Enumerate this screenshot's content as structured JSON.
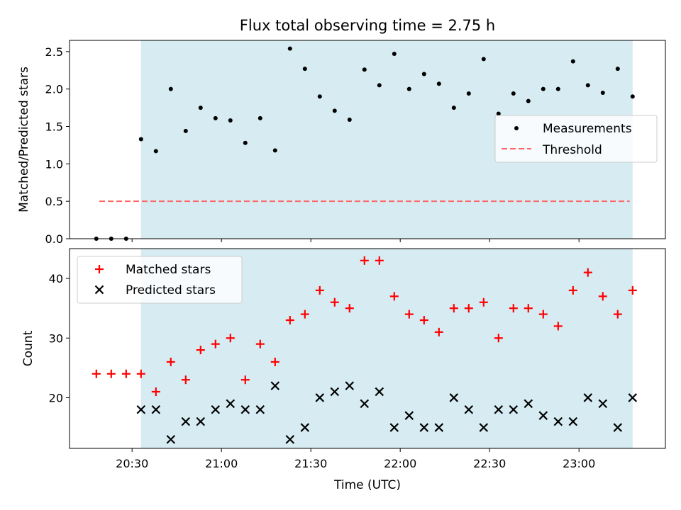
{
  "colors": {
    "shade": "#add8e6",
    "matched": "#ff0000",
    "predicted": "#000000",
    "threshold": "#ff6666",
    "measurement": "#000000"
  },
  "chart_data": [
    {
      "type": "scatter",
      "title": "Flux total observing time = 2.75 h",
      "xlabel": "",
      "ylabel": "Matched/Predicted stars",
      "xlim": [
        "20:09",
        "23:29"
      ],
      "ylim": [
        0,
        2.65
      ],
      "yticks": [
        "0.0",
        "0.5",
        "1.0",
        "1.5",
        "2.0",
        "2.5"
      ],
      "shaded_region": {
        "start": "20:33",
        "end": "23:18"
      },
      "threshold": {
        "value": 0.5,
        "start": "20:19",
        "end": "23:17"
      },
      "legend_position": "center-right",
      "series": [
        {
          "name": "Measurements",
          "x": [
            "20:18",
            "20:23",
            "20:28",
            "20:33",
            "20:38",
            "20:43",
            "20:48",
            "20:53",
            "20:58",
            "21:03",
            "21:08",
            "21:13",
            "21:18",
            "21:23",
            "21:28",
            "21:33",
            "21:38",
            "21:43",
            "21:48",
            "21:53",
            "21:58",
            "22:03",
            "22:08",
            "22:13",
            "22:18",
            "22:23",
            "22:28",
            "22:33",
            "22:38",
            "22:43",
            "22:48",
            "22:53",
            "22:58",
            "23:03",
            "23:08",
            "23:13",
            "23:18"
          ],
          "y": [
            0.0,
            0.0,
            0.0,
            1.33,
            1.17,
            2.0,
            1.44,
            1.75,
            1.61,
            1.58,
            1.28,
            1.61,
            1.18,
            2.54,
            2.27,
            1.9,
            1.71,
            1.59,
            2.26,
            2.05,
            2.47,
            2.0,
            2.2,
            2.07,
            1.75,
            1.94,
            2.4,
            1.67,
            1.94,
            1.84,
            2.0,
            2.0,
            2.37,
            2.05,
            1.95,
            2.27,
            1.9
          ]
        },
        {
          "name": "Threshold",
          "x": [
            "20:19",
            "23:17"
          ],
          "y": [
            0.5,
            0.5
          ]
        }
      ]
    },
    {
      "type": "scatter",
      "title": "",
      "xlabel": "Time (UTC)",
      "ylabel": "Count",
      "xlim": [
        "20:09",
        "23:29"
      ],
      "xticks": [
        "20:30",
        "21:00",
        "21:30",
        "22:00",
        "22:30",
        "23:00"
      ],
      "ylim": [
        11.5,
        45
      ],
      "yticks": [
        "20",
        "30",
        "40"
      ],
      "shaded_region": {
        "start": "20:33",
        "end": "23:18"
      },
      "legend_position": "upper-left",
      "series": [
        {
          "name": "Matched stars",
          "x": [
            "20:18",
            "20:23",
            "20:28",
            "20:33",
            "20:38",
            "20:43",
            "20:48",
            "20:53",
            "20:58",
            "21:03",
            "21:08",
            "21:13",
            "21:18",
            "21:23",
            "21:28",
            "21:33",
            "21:38",
            "21:43",
            "21:48",
            "21:53",
            "21:58",
            "22:03",
            "22:08",
            "22:13",
            "22:18",
            "22:23",
            "22:28",
            "22:33",
            "22:38",
            "22:43",
            "22:48",
            "22:53",
            "22:58",
            "23:03",
            "23:08",
            "23:13",
            "23:18"
          ],
          "y": [
            24,
            24,
            24,
            24,
            21,
            26,
            23,
            28,
            29,
            30,
            23,
            29,
            26,
            33,
            34,
            38,
            36,
            35,
            43,
            43,
            37,
            34,
            33,
            31,
            35,
            35,
            36,
            30,
            35,
            35,
            34,
            32,
            38,
            41,
            37,
            34,
            38
          ]
        },
        {
          "name": "Predicted stars",
          "x": [
            "20:33",
            "20:38",
            "20:43",
            "20:48",
            "20:53",
            "20:58",
            "21:03",
            "21:08",
            "21:13",
            "21:18",
            "21:23",
            "21:28",
            "21:33",
            "21:38",
            "21:43",
            "21:48",
            "21:53",
            "21:58",
            "22:03",
            "22:08",
            "22:13",
            "22:18",
            "22:23",
            "22:28",
            "22:33",
            "22:38",
            "22:43",
            "22:48",
            "22:53",
            "22:58",
            "23:03",
            "23:08",
            "23:13",
            "23:18"
          ],
          "y": [
            18,
            18,
            13,
            16,
            16,
            18,
            19,
            18,
            18,
            22,
            13,
            15,
            20,
            21,
            22,
            19,
            21,
            15,
            17,
            15,
            15,
            20,
            18,
            15,
            18,
            18,
            19,
            17,
            16,
            16,
            20,
            19,
            15,
            20
          ]
        }
      ]
    }
  ]
}
